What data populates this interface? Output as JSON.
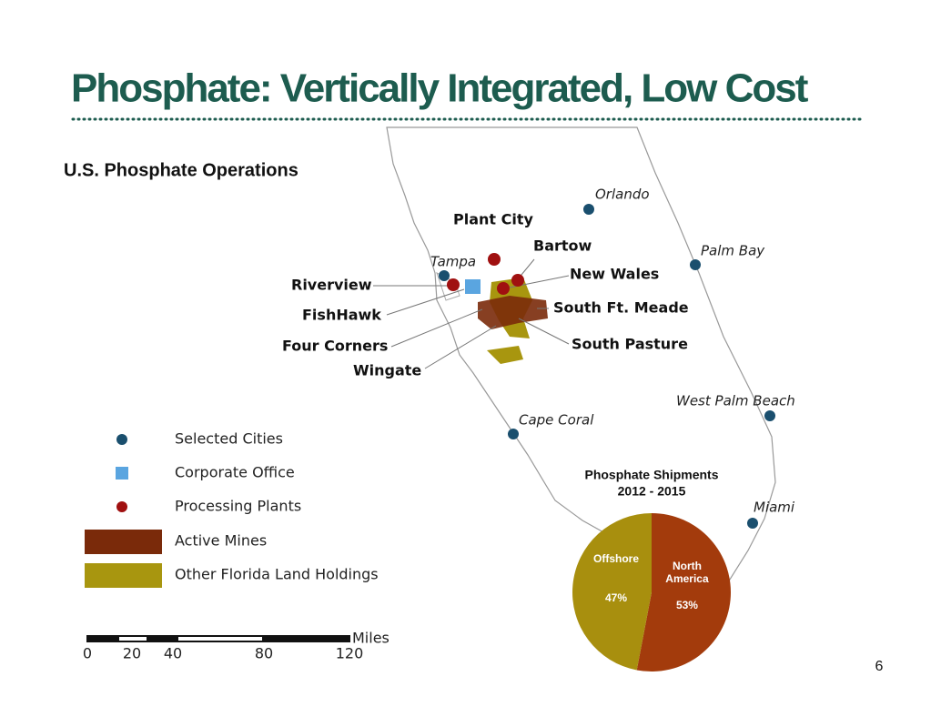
{
  "header": {
    "title": "Phosphate: Vertically Integrated, Low Cost",
    "subtitle": "U.S. Phosphate Operations"
  },
  "map": {
    "cities": [
      "Orlando",
      "Tampa",
      "Palm Bay",
      "West Palm Beach",
      "Cape Coral",
      "Miami"
    ],
    "sites": [
      "Plant City",
      "Bartow",
      "New Wales",
      "Riverview",
      "FishHawk",
      "South Ft. Meade",
      "Four Corners",
      "South Pasture",
      "Wingate"
    ],
    "legend": [
      "Selected Cities",
      "Corporate Office",
      "Processing Plants",
      "Active Mines",
      "Other Florida Land Holdings"
    ],
    "scale": {
      "labels": [
        "0",
        "20",
        "40",
        "80",
        "120"
      ],
      "unit": "Miles"
    }
  },
  "chart_data": {
    "type": "pie",
    "title": "Phosphate Shipments",
    "subtitle": "2012 - 2015",
    "categories": [
      "North America",
      "Offshore"
    ],
    "values": [
      53,
      47
    ],
    "value_labels": [
      "53%",
      "47%"
    ],
    "colors": [
      "#a33b0c",
      "#a88f0e"
    ]
  },
  "page_number": "6"
}
